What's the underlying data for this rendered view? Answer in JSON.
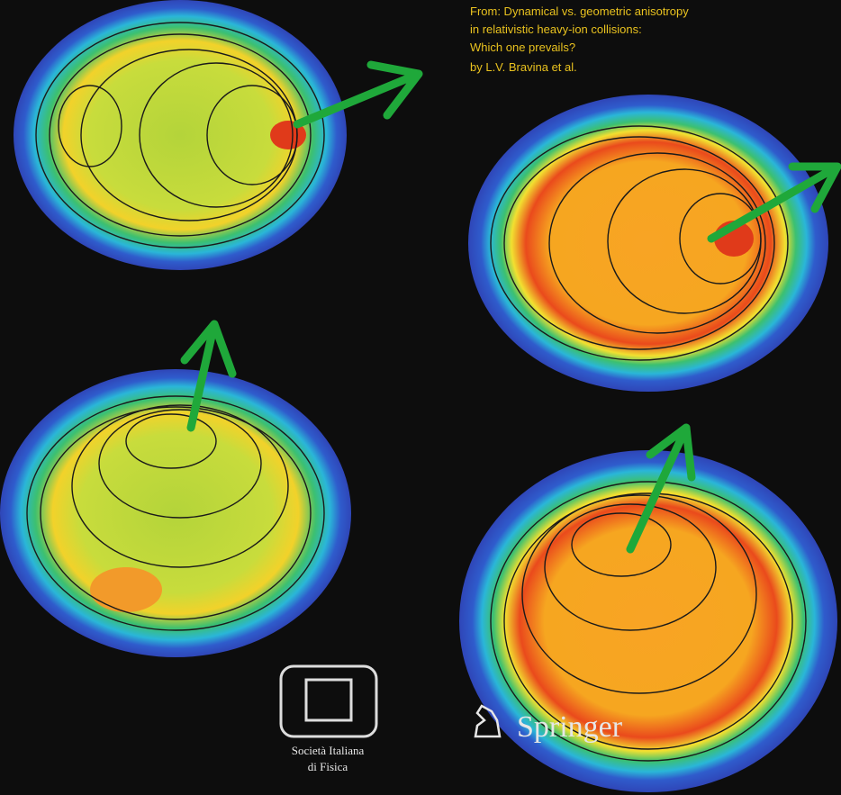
{
  "caption": {
    "lines": [
      "From: Dynamical vs. geometric anisotropy",
      "in relativistic heavy-ion collisions:",
      "Which one prevails?",
      "by L.V. Bravina et al."
    ]
  },
  "logos": {
    "society": [
      "Società Italiana",
      "di Fisica"
    ],
    "publisher": "Springer"
  }
}
